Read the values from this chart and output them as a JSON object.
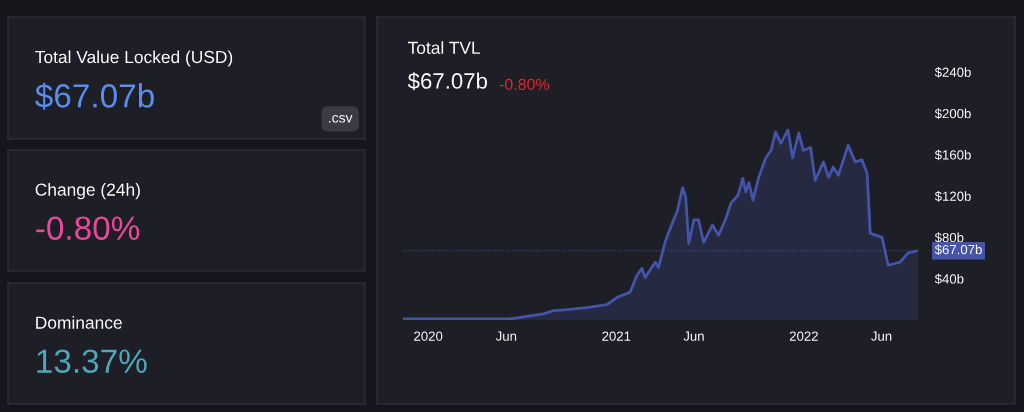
{
  "chart_data": [
    {
      "type": "other",
      "title": "Total Value Locked (USD)",
      "annotations": [
        "$67.07b",
        ".csv"
      ]
    },
    {
      "type": "other",
      "title": "Change (24h)",
      "annotations": [
        "-0.80%"
      ]
    },
    {
      "type": "other",
      "title": "Dominance",
      "annotations": [
        "13.37%"
      ]
    },
    {
      "type": "area",
      "title": "Total TVL",
      "subtitle": "$67.07b",
      "annotations": [
        "-0.80%"
      ],
      "x": [
        "2019-11-13",
        "2020-06-09",
        "2020-08-12",
        "2020-09-01",
        "2020-09-27",
        "2020-11-05",
        "2020-12-14",
        "2021-01-03",
        "2021-01-28",
        "2021-02-10",
        "2021-02-20",
        "2021-02-26",
        "2021-03-18",
        "2021-03-24",
        "2021-04-07",
        "2021-04-17",
        "2021-04-30",
        "2021-05-10",
        "2021-05-16",
        "2021-05-22",
        "2021-06-01",
        "2021-06-10",
        "2021-06-20",
        "2021-07-07",
        "2021-07-19",
        "2021-08-02",
        "2021-08-12",
        "2021-08-26",
        "2021-09-04",
        "2021-09-10",
        "2021-09-16",
        "2021-09-24",
        "2021-10-05",
        "2021-10-19",
        "2021-10-29",
        "2021-11-07",
        "2021-11-17",
        "2021-12-01",
        "2021-12-10",
        "2021-12-22",
        "2021-12-31",
        "2022-01-14",
        "2022-01-23",
        "2022-02-08",
        "2022-02-18",
        "2022-02-27",
        "2022-03-09",
        "2022-03-28",
        "2022-04-11",
        "2022-04-24",
        "2022-05-04",
        "2022-05-10",
        "2022-06-02",
        "2022-06-14",
        "2022-07-07",
        "2022-07-23",
        "2022-08-11"
      ],
      "series": [
        {
          "color": "#4454a8",
          "values": [
            1,
            1,
            6,
            9,
            10,
            12,
            15,
            22,
            27,
            43,
            50,
            41,
            56,
            51,
            77,
            90,
            106,
            128,
            119,
            74,
            97,
            97,
            75,
            92,
            82,
            98,
            113,
            121,
            137,
            124,
            133,
            116,
            138,
            157,
            164,
            182,
            171,
            184,
            157,
            181,
            164,
            167,
            135,
            153,
            138,
            148,
            140,
            169,
            153,
            155,
            142,
            84,
            80,
            53,
            56,
            65,
            67.07
          ]
        }
      ],
      "xlim": [
        "2019-11-13",
        "2022-08-11"
      ],
      "xticks": [
        {
          "value": "2020-01-01",
          "label": "2020"
        },
        {
          "value": "2020-06-01",
          "label": "Jun"
        },
        {
          "value": "2021-01-01",
          "label": "2021"
        },
        {
          "value": "2021-06-01",
          "label": "Jun"
        },
        {
          "value": "2022-01-01",
          "label": "2022"
        },
        {
          "value": "2022-06-01",
          "label": "Jun"
        }
      ],
      "ylim": [
        0,
        240
      ],
      "yticks": [
        {
          "value": 40,
          "label": "$40b"
        },
        {
          "value": 80,
          "label": "$80b"
        },
        {
          "value": 120,
          "label": "$120b"
        },
        {
          "value": 160,
          "label": "$160b"
        },
        {
          "value": 200,
          "label": "$200b"
        },
        {
          "value": 240,
          "label": "$240b"
        }
      ],
      "ref_lines": [
        {
          "axis": "y",
          "value": 67.07,
          "label": "$67.07b",
          "color": "#4454a8",
          "line_style": "dotted"
        }
      ],
      "grid": false,
      "legend": false
    }
  ]
}
